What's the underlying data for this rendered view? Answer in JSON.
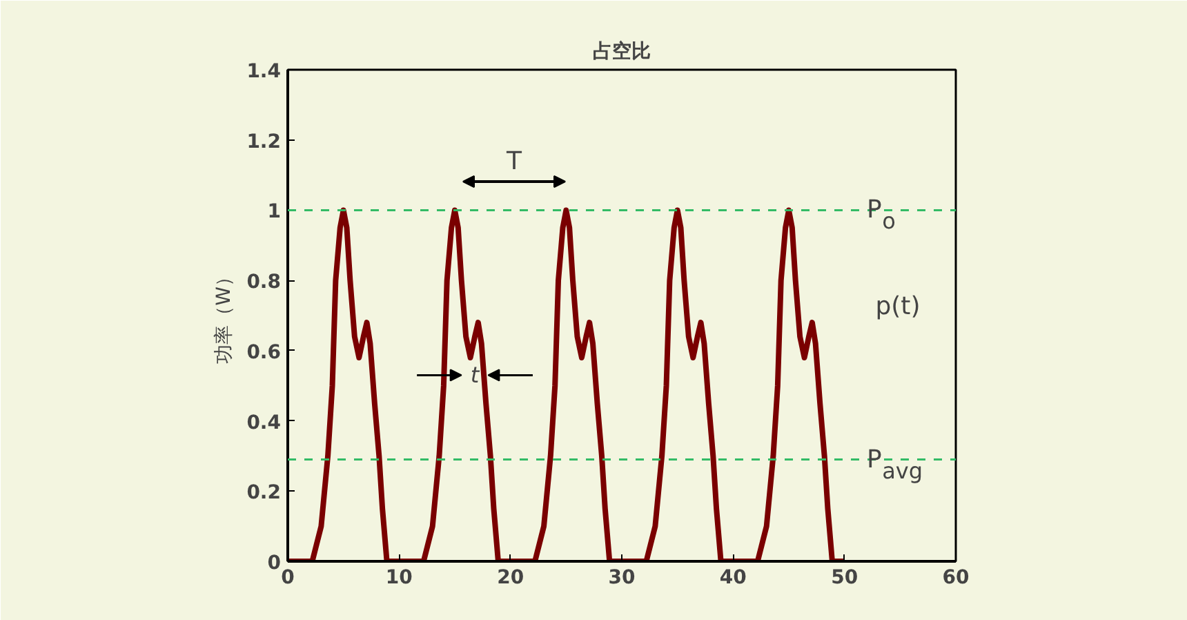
{
  "chart_data": {
    "type": "line",
    "title": "占空比",
    "ylabel": "功率（W）",
    "x": [
      0,
      2.2,
      3.0,
      3.6,
      4.0,
      4.3,
      4.7,
      5.0,
      5.3,
      5.6,
      6.0,
      6.4,
      6.8,
      7.1,
      7.4,
      7.8,
      8.2,
      8.5,
      8.9,
      12.2,
      13.0,
      13.6,
      14.0,
      14.3,
      14.7,
      15.0,
      15.3,
      15.6,
      16.0,
      16.4,
      16.8,
      17.1,
      17.4,
      17.8,
      18.2,
      18.5,
      18.9,
      22.2,
      23.0,
      23.6,
      24.0,
      24.3,
      24.7,
      25.0,
      25.3,
      25.6,
      26.0,
      26.4,
      26.8,
      27.1,
      27.4,
      27.8,
      28.2,
      28.5,
      28.9,
      32.2,
      33.0,
      33.6,
      34.0,
      34.3,
      34.7,
      35.0,
      35.3,
      35.6,
      36.0,
      36.4,
      36.8,
      37.1,
      37.4,
      37.8,
      38.2,
      38.5,
      38.9,
      42.2,
      43.0,
      43.6,
      44.0,
      44.3,
      44.7,
      45.0,
      45.3,
      45.6,
      46.0,
      46.4,
      46.8,
      47.1,
      47.4,
      47.8,
      48.2,
      48.5,
      48.9,
      50
    ],
    "series": [
      {
        "color": "#7a0000",
        "values": [
          0,
          0,
          0.1,
          0.3,
          0.5,
          0.8,
          0.95,
          1.0,
          0.95,
          0.8,
          0.64,
          0.58,
          0.64,
          0.68,
          0.62,
          0.45,
          0.3,
          0.15,
          0,
          0,
          0.1,
          0.3,
          0.5,
          0.8,
          0.95,
          1.0,
          0.95,
          0.8,
          0.64,
          0.58,
          0.64,
          0.68,
          0.62,
          0.45,
          0.3,
          0.15,
          0,
          0,
          0.1,
          0.3,
          0.5,
          0.8,
          0.95,
          1.0,
          0.95,
          0.8,
          0.64,
          0.58,
          0.64,
          0.68,
          0.62,
          0.45,
          0.3,
          0.15,
          0,
          0,
          0.1,
          0.3,
          0.5,
          0.8,
          0.95,
          1.0,
          0.95,
          0.8,
          0.64,
          0.58,
          0.64,
          0.68,
          0.62,
          0.45,
          0.3,
          0.15,
          0,
          0,
          0.1,
          0.3,
          0.5,
          0.8,
          0.95,
          1.0,
          0.95,
          0.8,
          0.64,
          0.58,
          0.64,
          0.68,
          0.62,
          0.45,
          0.3,
          0.15,
          0,
          0
        ]
      }
    ],
    "xlim": [
      0,
      60
    ],
    "xticks": [
      0,
      10,
      20,
      30,
      40,
      50,
      60
    ],
    "ylim": [
      0,
      1.4
    ],
    "yticks": [
      0,
      0.2,
      0.4,
      0.6,
      0.8,
      1,
      1.2,
      1.4
    ],
    "ref_lines": [
      {
        "axis": "y",
        "value": 1,
        "label": "P$_{o}$",
        "color": "#33bb66",
        "line_style": "dashed"
      },
      {
        "axis": "y",
        "value": 0.29,
        "label": "P$_{avg}$",
        "color": "#33bb66",
        "line_style": "dashed"
      }
    ],
    "annotations": [
      "T",
      {
        "text": "t",
        "x": 16.8,
        "y": 0.53
      },
      "p(t)"
    ],
    "grid": false,
    "line_style": "solid",
    "marker": "none"
  }
}
